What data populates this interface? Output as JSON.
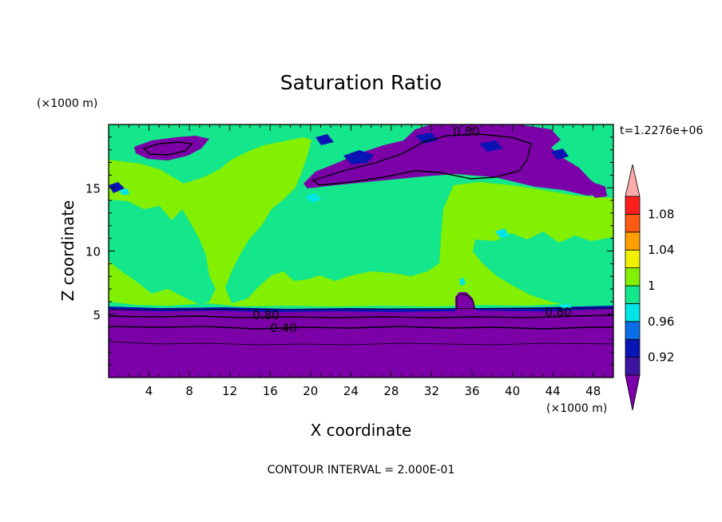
{
  "chart_data": {
    "type": "heatmap",
    "title": "Saturation Ratio",
    "xlabel": "X coordinate",
    "ylabel": "Z coordinate",
    "x_unit": "(×1000 m)",
    "y_unit": "(×1000 m)",
    "xlim": [
      0,
      50
    ],
    "ylim": [
      0,
      20
    ],
    "x_ticks": [
      "4",
      "8",
      "12",
      "16",
      "20",
      "24",
      "28",
      "32",
      "36",
      "40",
      "44",
      "48"
    ],
    "y_ticks": [
      "5",
      "10",
      "15"
    ],
    "time_label": "t=1.2276e+06",
    "footer": "CONTOUR INTERVAL = 2.000E-01",
    "contour_labels": [
      "0.80",
      "0.40",
      "0.80",
      "0.80"
    ],
    "colorbar": {
      "labels": [
        "0.92",
        "0.96",
        "1",
        "1.04",
        "1.08"
      ],
      "levels": [
        0.9,
        0.92,
        0.94,
        0.96,
        0.98,
        1.0,
        1.02,
        1.04,
        1.06,
        1.08,
        1.1
      ],
      "colors": [
        "#7b00a8",
        "#3c14a0",
        "#0a14b4",
        "#0a6ee6",
        "#00e6e6",
        "#14e68c",
        "#82f000",
        "#f0f000",
        "#ffa000",
        "#ff5a14",
        "#ff1e1e",
        "#ffaaaa"
      ]
    },
    "field_colors": {
      "dry": "#7b00a8",
      "near_saturation": "#14e68c",
      "saturated": "#82f000",
      "blue": "#0a14b4",
      "cyan": "#00e6e6"
    }
  }
}
